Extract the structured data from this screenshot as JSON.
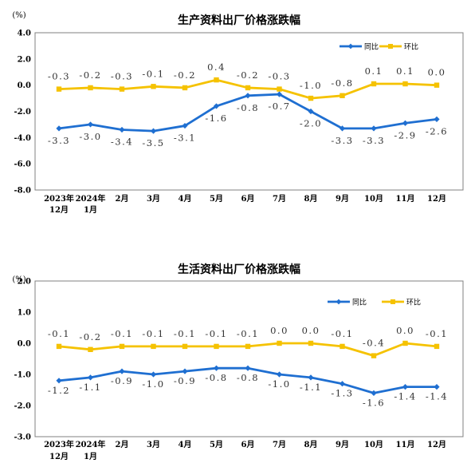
{
  "chart_data": [
    {
      "type": "line",
      "title": "生产资料出厂价格涨跌幅",
      "unit_label": "(%)",
      "y_ticks": [
        "4.0",
        "2.0",
        "0.0",
        "-2.0",
        "-4.0",
        "-6.0",
        "-8.0"
      ],
      "ylim": [
        -8,
        4
      ],
      "categories": [
        [
          "2023年",
          "12月"
        ],
        [
          "2024年",
          "1月"
        ],
        [
          "2月"
        ],
        [
          "3月"
        ],
        [
          "4月"
        ],
        [
          "5月"
        ],
        [
          "6月"
        ],
        [
          "7月"
        ],
        [
          "8月"
        ],
        [
          "9月"
        ],
        [
          "10月"
        ],
        [
          "11月"
        ],
        [
          "12月"
        ]
      ],
      "series": [
        {
          "name": "同比",
          "color": "#1f6fd1",
          "values": [
            -3.3,
            -3.0,
            -3.4,
            -3.5,
            -3.1,
            -1.6,
            -0.8,
            -0.7,
            -2.0,
            -3.3,
            -3.3,
            -2.9,
            -2.6
          ],
          "labels": [
            "-3.3",
            "-3.0",
            "-3.4",
            "-3.5",
            "-3.1",
            "-1.6",
            "-0.8",
            "-0.7",
            "-2.0",
            "-3.3",
            "-3.3",
            "-2.9",
            "-2.6"
          ]
        },
        {
          "name": "环比",
          "color": "#f5c200",
          "values": [
            -0.3,
            -0.2,
            -0.3,
            -0.1,
            -0.2,
            0.4,
            -0.2,
            -0.3,
            -1.0,
            -0.8,
            0.1,
            0.1,
            0.0
          ],
          "labels": [
            "-0.3",
            "-0.2",
            "-0.3",
            "-0.1",
            "-0.2",
            "0.4",
            "-0.2",
            "-0.3",
            "-1.0",
            "-0.8",
            "0.1",
            "0.1",
            "0.0"
          ]
        }
      ],
      "legend_position": "top-right",
      "grid": false
    },
    {
      "type": "line",
      "title": "生活资料出厂价格涨跌幅",
      "unit_label": "(%)",
      "y_ticks": [
        "2.0",
        "1.0",
        "0.0",
        "-1.0",
        "-2.0",
        "-3.0"
      ],
      "ylim": [
        -3,
        2
      ],
      "categories": [
        [
          "2023年",
          "12月"
        ],
        [
          "2024年",
          "1月"
        ],
        [
          "2月"
        ],
        [
          "3月"
        ],
        [
          "4月"
        ],
        [
          "5月"
        ],
        [
          "6月"
        ],
        [
          "7月"
        ],
        [
          "8月"
        ],
        [
          "9月"
        ],
        [
          "10月"
        ],
        [
          "11月"
        ],
        [
          "12月"
        ]
      ],
      "series": [
        {
          "name": "同比",
          "color": "#1f6fd1",
          "values": [
            -1.2,
            -1.1,
            -0.9,
            -1.0,
            -0.9,
            -0.8,
            -0.8,
            -1.0,
            -1.1,
            -1.3,
            -1.6,
            -1.4,
            -1.4
          ],
          "labels": [
            "-1.2",
            "-1.1",
            "-0.9",
            "-1.0",
            "-0.9",
            "-0.8",
            "-0.8",
            "-1.0",
            "-1.1",
            "-1.3",
            "-1.6",
            "-1.4",
            "-1.4"
          ]
        },
        {
          "name": "环比",
          "color": "#f5c200",
          "values": [
            -0.1,
            -0.2,
            -0.1,
            -0.1,
            -0.1,
            -0.1,
            -0.1,
            0.0,
            0.0,
            -0.1,
            -0.4,
            0.0,
            -0.1
          ],
          "labels": [
            "-0.1",
            "-0.2",
            "-0.1",
            "-0.1",
            "-0.1",
            "-0.1",
            "-0.1",
            "0.0",
            "0.0",
            "-0.1",
            "-0.4",
            "0.0",
            "-0.1"
          ]
        }
      ],
      "legend_position": "top-right",
      "grid": false
    }
  ]
}
